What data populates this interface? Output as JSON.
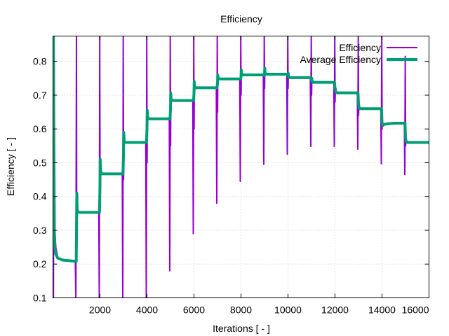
{
  "chart_data": {
    "type": "line",
    "title": "Efficiency",
    "xlabel": "Iterations [ - ]",
    "ylabel": "Efficiency [ - ]",
    "xlim": [
      0,
      16000
    ],
    "ylim": [
      0.1,
      0.875
    ],
    "xticks": [
      2000,
      4000,
      6000,
      8000,
      10000,
      12000,
      14000,
      16000
    ],
    "yticks": [
      0.1,
      0.2,
      0.3,
      0.4,
      0.5,
      0.6,
      0.7,
      0.8
    ],
    "grid": true,
    "legend_position": "top-right",
    "series": [
      {
        "name": "Efficiency",
        "color": "#9400d3",
        "line_width": "thin",
        "x": [
          0,
          20,
          40,
          60,
          80,
          120,
          200,
          400,
          700,
          950,
          975,
          1000,
          1010,
          1020,
          1040,
          1100,
          1500,
          1950,
          1970,
          1990,
          2005,
          2015,
          2030,
          2100,
          2500,
          2950,
          2970,
          2990,
          3005,
          3015,
          3030,
          3100,
          3500,
          3950,
          3970,
          3990,
          4005,
          4015,
          4030,
          4100,
          4500,
          4950,
          4970,
          4990,
          5005,
          5015,
          5030,
          5100,
          5500,
          5950,
          5970,
          5990,
          6005,
          6015,
          6030,
          6100,
          6500,
          6950,
          6970,
          6990,
          7005,
          7015,
          7030,
          7100,
          7500,
          7950,
          7970,
          7990,
          8005,
          8015,
          8030,
          8100,
          8500,
          8950,
          8970,
          8990,
          9005,
          9015,
          9030,
          9100,
          9500,
          9950,
          9970,
          9990,
          10005,
          10015,
          10030,
          10100,
          10500,
          10950,
          10970,
          10990,
          11005,
          11015,
          11030,
          11100,
          11500,
          11950,
          11970,
          11990,
          12005,
          12015,
          12030,
          12100,
          12500,
          12950,
          12970,
          12990,
          13005,
          13015,
          13030,
          13100,
          13500,
          13950,
          13970,
          13990,
          14005,
          14015,
          14030,
          14100,
          14500,
          14950,
          14970,
          14990,
          15005,
          15015,
          15030,
          15100,
          15500,
          16000
        ],
        "y": [
          0.875,
          0.1,
          0.875,
          0.6,
          0.3,
          0.25,
          0.22,
          0.212,
          0.21,
          0.208,
          0.1,
          0.875,
          0.3,
          0.4,
          0.36,
          0.355,
          0.355,
          0.355,
          0.1,
          0.875,
          0.4,
          0.5,
          0.47,
          0.468,
          0.468,
          0.468,
          0.1,
          0.875,
          0.45,
          0.59,
          0.562,
          0.56,
          0.56,
          0.56,
          0.1,
          0.875,
          0.5,
          0.65,
          0.632,
          0.63,
          0.63,
          0.63,
          0.18,
          0.875,
          0.55,
          0.71,
          0.685,
          0.684,
          0.684,
          0.684,
          0.29,
          0.875,
          0.6,
          0.74,
          0.722,
          0.722,
          0.722,
          0.722,
          0.38,
          0.875,
          0.65,
          0.76,
          0.748,
          0.748,
          0.748,
          0.748,
          0.445,
          0.875,
          0.7,
          0.775,
          0.76,
          0.76,
          0.76,
          0.76,
          0.495,
          0.875,
          0.72,
          0.78,
          0.762,
          0.762,
          0.762,
          0.762,
          0.525,
          0.875,
          0.72,
          0.765,
          0.752,
          0.752,
          0.752,
          0.752,
          0.548,
          0.875,
          0.7,
          0.75,
          0.738,
          0.738,
          0.738,
          0.738,
          0.548,
          0.875,
          0.68,
          0.72,
          0.708,
          0.708,
          0.708,
          0.708,
          0.54,
          0.875,
          0.64,
          0.675,
          0.66,
          0.66,
          0.66,
          0.66,
          0.497,
          0.875,
          0.6,
          0.63,
          0.61,
          0.614,
          0.617,
          0.617,
          0.465,
          0.815,
          0.55,
          0.575,
          0.562,
          0.56,
          0.56,
          0.56
        ]
      },
      {
        "name": "Average Efficiency",
        "color": "#009e73",
        "line_width": "thick",
        "x": [
          0,
          20,
          40,
          60,
          80,
          120,
          200,
          400,
          700,
          950,
          990,
          1000,
          1015,
          1030,
          1060,
          1100,
          1500,
          1980,
          2000,
          2010,
          2030,
          2060,
          2100,
          2500,
          2980,
          3000,
          3010,
          3030,
          3060,
          3100,
          3500,
          3980,
          4000,
          4010,
          4030,
          4060,
          4100,
          4500,
          4980,
          5000,
          5010,
          5030,
          5060,
          5100,
          5500,
          5980,
          6000,
          6010,
          6030,
          6060,
          6100,
          6500,
          6980,
          7000,
          7010,
          7030,
          7060,
          7100,
          7500,
          7980,
          8000,
          8010,
          8030,
          8060,
          8100,
          8500,
          8980,
          9000,
          9010,
          9030,
          9060,
          9100,
          9500,
          9980,
          10000,
          10010,
          10030,
          10060,
          10100,
          10500,
          10980,
          11000,
          11010,
          11030,
          11060,
          11100,
          11500,
          11980,
          12000,
          12010,
          12030,
          12060,
          12100,
          12500,
          12980,
          13000,
          13010,
          13030,
          13060,
          13100,
          13500,
          13980,
          14000,
          14010,
          14030,
          14060,
          14100,
          14500,
          14980,
          15000,
          15010,
          15030,
          15060,
          15100,
          15500,
          16000
        ],
        "y": [
          0.8,
          0.875,
          0.55,
          0.3,
          0.25,
          0.23,
          0.218,
          0.212,
          0.21,
          0.208,
          0.208,
          0.28,
          0.41,
          0.36,
          0.354,
          0.353,
          0.353,
          0.353,
          0.43,
          0.51,
          0.475,
          0.468,
          0.467,
          0.467,
          0.467,
          0.52,
          0.59,
          0.565,
          0.56,
          0.56,
          0.56,
          0.56,
          0.6,
          0.655,
          0.635,
          0.631,
          0.63,
          0.63,
          0.63,
          0.66,
          0.705,
          0.688,
          0.684,
          0.684,
          0.684,
          0.684,
          0.705,
          0.74,
          0.725,
          0.722,
          0.722,
          0.722,
          0.722,
          0.735,
          0.76,
          0.75,
          0.748,
          0.748,
          0.748,
          0.748,
          0.752,
          0.775,
          0.762,
          0.76,
          0.76,
          0.76,
          0.76,
          0.758,
          0.78,
          0.765,
          0.762,
          0.762,
          0.762,
          0.762,
          0.758,
          0.765,
          0.754,
          0.752,
          0.752,
          0.752,
          0.752,
          0.745,
          0.75,
          0.74,
          0.738,
          0.738,
          0.738,
          0.738,
          0.72,
          0.72,
          0.71,
          0.708,
          0.707,
          0.707,
          0.707,
          0.675,
          0.67,
          0.662,
          0.66,
          0.66,
          0.66,
          0.66,
          0.62,
          0.615,
          0.61,
          0.612,
          0.614,
          0.617,
          0.617,
          0.575,
          0.57,
          0.562,
          0.56,
          0.56,
          0.56,
          0.56
        ]
      }
    ]
  }
}
